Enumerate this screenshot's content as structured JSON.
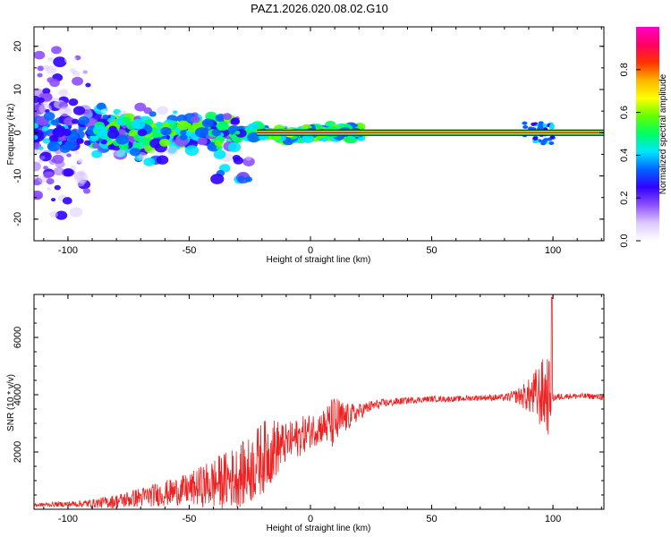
{
  "title": "PAZ1.2026.020.08.02.G10",
  "chart_data": [
    {
      "type": "heatmap",
      "name": "spectrogram",
      "xlabel": "Height of straight line (km)",
      "ylabel": "Frequency (Hz)",
      "xlim": [
        -114,
        121
      ],
      "ylim": [
        -25,
        24.5
      ],
      "xticks": [
        -100,
        -50,
        0,
        50,
        100
      ],
      "yticks": [
        -20,
        -10,
        0,
        10,
        20
      ],
      "tone_line": {
        "x_range": [
          -22,
          121
        ],
        "frequency": 0,
        "level": "max"
      },
      "colorbar": {
        "label": "Normalized spectral amplitude",
        "range": [
          0,
          1
        ],
        "ticks": [
          0.0,
          0.2,
          0.4,
          0.6,
          0.8
        ],
        "colors": [
          "#ffffff",
          "#dcc8ff",
          "#8c50ff",
          "#3000ff",
          "#0064ff",
          "#00e6ff",
          "#00ff64",
          "#64ff00",
          "#ffff00",
          "#ffb400",
          "#ff3200",
          "#ff0064",
          "#ff00c8"
        ]
      }
    },
    {
      "type": "line",
      "name": "snr",
      "xlabel": "Height of straight line (km)",
      "ylabel": "SNR (10 * v/v)",
      "xlim": [
        -114,
        121
      ],
      "ylim": [
        0,
        7500
      ],
      "xticks": [
        -100,
        -50,
        0,
        50,
        100
      ],
      "yticks": [
        2000,
        4000,
        6000
      ],
      "color": "#ee2222",
      "envelope_x": [
        -114,
        -100,
        -90,
        -80,
        -70,
        -60,
        -50,
        -40,
        -30,
        -25,
        -20,
        -15,
        -10,
        -5,
        0,
        5,
        10,
        15,
        20,
        25,
        30,
        40,
        50,
        60,
        70,
        80,
        85,
        90,
        95,
        98,
        100,
        105,
        110,
        115,
        121
      ],
      "envelope_mean": [
        150,
        180,
        200,
        280,
        420,
        560,
        700,
        900,
        1150,
        1350,
        1800,
        2100,
        2300,
        2500,
        2750,
        2900,
        3000,
        3200,
        3400,
        3600,
        3700,
        3800,
        3850,
        3850,
        3900,
        3900,
        3950,
        3950,
        4000,
        4050,
        3900,
        3950,
        3950,
        3950,
        3900
      ],
      "envelope_amp": [
        60,
        100,
        150,
        250,
        350,
        450,
        550,
        900,
        1100,
        1200,
        1300,
        1100,
        700,
        700,
        600,
        600,
        1000,
        500,
        300,
        200,
        150,
        120,
        100,
        100,
        100,
        120,
        250,
        600,
        1200,
        1500,
        150,
        100,
        100,
        100,
        100
      ],
      "peak_x": 99.5,
      "peak_value": 7400
    }
  ]
}
